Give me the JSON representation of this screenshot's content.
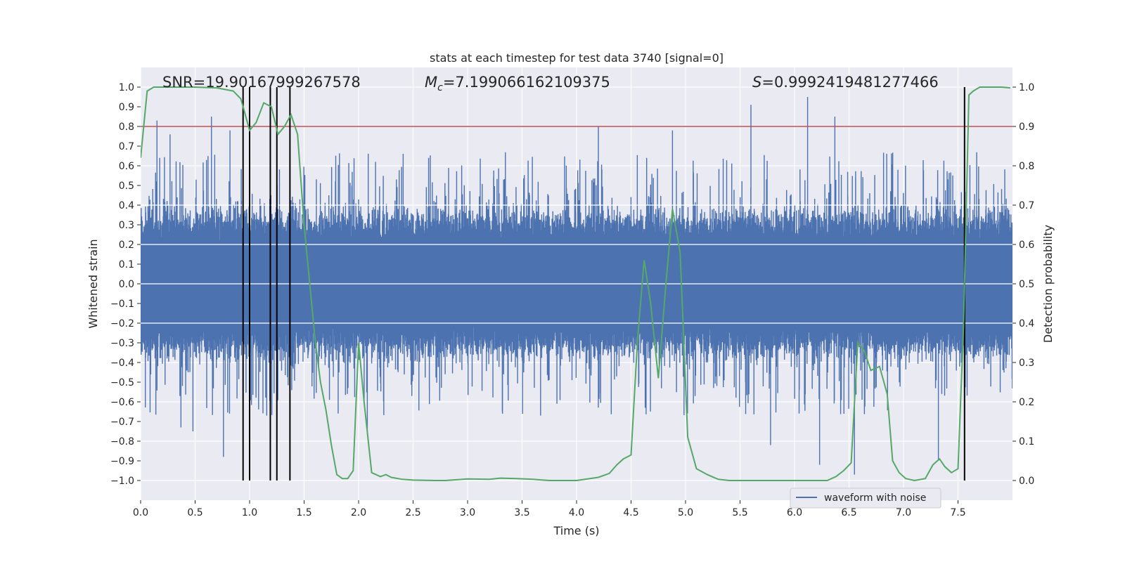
{
  "chart_data": {
    "type": "line",
    "title": "stats at each timestep for test data 3740 [signal=0]",
    "xlabel": "Time (s)",
    "ylabel": "Whitened strain",
    "y2label": "Detection probability",
    "xlim": [
      0.0,
      8.0
    ],
    "ylim": [
      -1.1,
      1.1
    ],
    "y2lim": [
      -0.05,
      1.05
    ],
    "xticks": [
      "0.0",
      "0.5",
      "1.0",
      "1.5",
      "2.0",
      "2.5",
      "3.0",
      "3.5",
      "4.0",
      "4.5",
      "5.0",
      "5.5",
      "6.0",
      "6.5",
      "7.0",
      "7.5"
    ],
    "yticks": [
      "−1.0",
      "−0.9",
      "−0.8",
      "−0.7",
      "−0.6",
      "−0.5",
      "−0.4",
      "−0.3",
      "−0.2",
      "−0.1",
      "0.0",
      "0.1",
      "0.2",
      "0.3",
      "0.4",
      "0.5",
      "0.6",
      "0.7",
      "0.8",
      "0.9",
      "1.0"
    ],
    "y2ticks": [
      "0.0",
      "0.1",
      "0.2",
      "0.3",
      "0.4",
      "0.5",
      "0.6",
      "0.7",
      "0.8",
      "0.9",
      "1.0"
    ],
    "grid": true,
    "legend": {
      "placement": "lower-right",
      "entries": [
        "waveform with noise"
      ]
    },
    "annotations": {
      "snr": "SNR=19.90167999267578",
      "mc_symbol": "M",
      "mc_sub": "c",
      "mc_value": "=7.199066162109375",
      "s_symbol": "S",
      "s_value": "=0.9992419481277466"
    },
    "threshold": {
      "value": 0.9,
      "axis": "y2",
      "color": "#c44e52"
    },
    "vertical_lines_x": [
      0.94,
      1.0,
      1.19,
      1.25,
      1.37,
      7.56
    ],
    "series": [
      {
        "name": "waveform with noise",
        "axis": "y",
        "color": "#4c72b0",
        "description": "dense noise waveform, core amplitude about ±0.2 to ±0.4 with spikes reaching ±0.9",
        "spikes": [
          {
            "x": 0.15,
            "y": 0.83
          },
          {
            "x": 0.27,
            "y": 0.76
          },
          {
            "x": 0.37,
            "y": -0.73
          },
          {
            "x": 0.48,
            "y": -0.75
          },
          {
            "x": 0.65,
            "y": 0.85
          },
          {
            "x": 0.76,
            "y": -0.88
          },
          {
            "x": 0.82,
            "y": 0.78
          },
          {
            "x": 2.08,
            "y": -0.75
          },
          {
            "x": 4.2,
            "y": 0.8
          },
          {
            "x": 4.88,
            "y": 0.78
          },
          {
            "x": 5.6,
            "y": 0.91
          },
          {
            "x": 5.78,
            "y": -0.82
          },
          {
            "x": 6.12,
            "y": 0.95
          },
          {
            "x": 6.23,
            "y": -0.92
          },
          {
            "x": 6.37,
            "y": 0.85
          },
          {
            "x": 6.55,
            "y": -0.97
          },
          {
            "x": 7.32,
            "y": -0.9
          }
        ]
      },
      {
        "name": "",
        "axis": "y2",
        "color": "#55a868",
        "x": [
          0.0,
          0.06,
          0.12,
          0.2,
          0.3,
          0.5,
          0.7,
          0.85,
          0.92,
          1.0,
          1.06,
          1.13,
          1.2,
          1.26,
          1.32,
          1.38,
          1.44,
          1.5,
          1.6,
          1.65,
          1.7,
          1.75,
          1.8,
          1.85,
          1.9,
          1.95,
          2.0,
          2.05,
          2.12,
          2.2,
          2.25,
          2.3,
          2.4,
          2.5,
          2.7,
          2.8,
          3.0,
          3.2,
          3.3,
          3.45,
          3.6,
          3.75,
          3.9,
          4.0,
          4.1,
          4.2,
          4.3,
          4.37,
          4.43,
          4.5,
          4.56,
          4.62,
          4.68,
          4.75,
          4.82,
          4.88,
          4.95,
          5.02,
          5.1,
          5.2,
          5.3,
          5.4,
          5.6,
          6.0,
          6.3,
          6.38,
          6.45,
          6.52,
          6.58,
          6.64,
          6.7,
          6.78,
          6.85,
          6.9,
          6.96,
          7.02,
          7.1,
          7.2,
          7.27,
          7.33,
          7.38,
          7.44,
          7.5,
          7.55,
          7.6,
          7.64,
          7.7,
          7.8,
          7.9,
          7.98
        ],
        "y": [
          0.82,
          0.99,
          1.0,
          1.0,
          1.0,
          1.0,
          0.998,
          0.99,
          0.97,
          0.89,
          0.91,
          0.96,
          0.95,
          0.88,
          0.9,
          0.93,
          0.88,
          0.65,
          0.36,
          0.25,
          0.18,
          0.09,
          0.015,
          0.005,
          0.005,
          0.025,
          0.35,
          0.2,
          0.02,
          0.01,
          0.015,
          0.008,
          0.003,
          0.001,
          0.0,
          0.0,
          0.004,
          0.003,
          0.006,
          0.005,
          0.003,
          0.0,
          0.0,
          0.0,
          0.004,
          0.008,
          0.018,
          0.04,
          0.055,
          0.065,
          0.36,
          0.56,
          0.45,
          0.26,
          0.5,
          0.69,
          0.58,
          0.11,
          0.03,
          0.015,
          0.003,
          0.0,
          0.0,
          0.0,
          0.0,
          0.01,
          0.025,
          0.045,
          0.35,
          0.33,
          0.28,
          0.29,
          0.22,
          0.05,
          0.02,
          0.005,
          0.0,
          0.005,
          0.04,
          0.055,
          0.035,
          0.02,
          0.03,
          0.39,
          0.98,
          0.99,
          1.0,
          1.0,
          1.0,
          0.998
        ]
      }
    ]
  }
}
